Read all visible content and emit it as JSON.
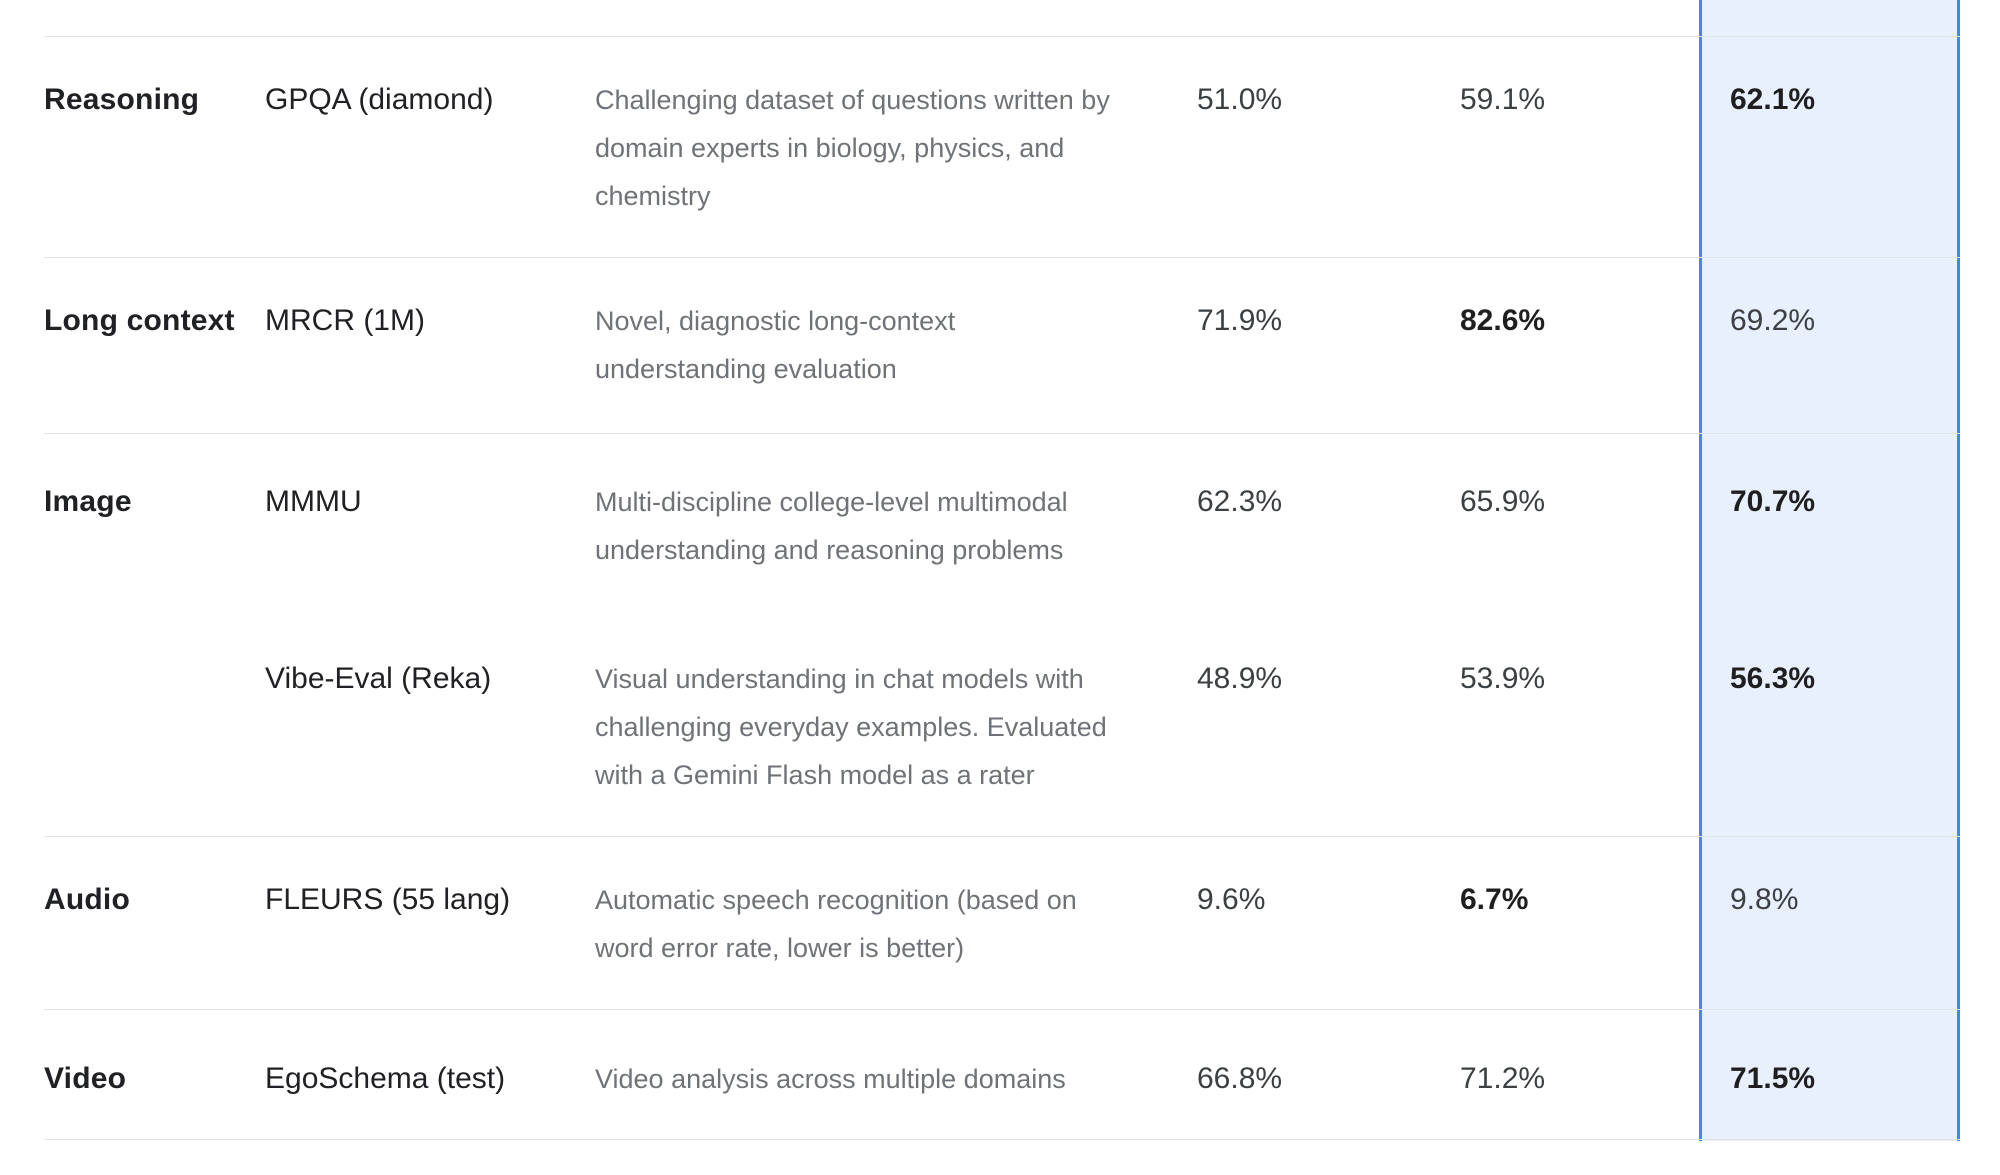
{
  "colors": {
    "highlight_bg": "#e8f0fe",
    "highlight_border": "#4285f4",
    "divider": "#e0e2e4",
    "text_primary": "#202124",
    "text_secondary": "#6f7377"
  },
  "table": {
    "highlighted_score_column_index": 2,
    "rows": [
      {
        "category": "Reasoning",
        "entries": [
          {
            "benchmark": "GPQA (diamond)",
            "description": "Challenging dataset of questions written by\ndomain experts in biology, physics, and\nchemistry",
            "values": [
              {
                "text": "51.0%",
                "bold": false
              },
              {
                "text": "59.1%",
                "bold": false
              },
              {
                "text": "62.1%",
                "bold": true
              }
            ]
          }
        ]
      },
      {
        "category": "Long context",
        "entries": [
          {
            "benchmark": "MRCR (1M)",
            "description": "Novel, diagnostic long-context\nunderstanding evaluation",
            "values": [
              {
                "text": "71.9%",
                "bold": false
              },
              {
                "text": "82.6%",
                "bold": true
              },
              {
                "text": "69.2%",
                "bold": false
              }
            ]
          }
        ]
      },
      {
        "category": "Image",
        "entries": [
          {
            "benchmark": "MMMU",
            "description": "Multi-discipline college-level multimodal\nunderstanding and reasoning problems",
            "values": [
              {
                "text": "62.3%",
                "bold": false
              },
              {
                "text": "65.9%",
                "bold": false
              },
              {
                "text": "70.7%",
                "bold": true
              }
            ]
          },
          {
            "benchmark": "Vibe-Eval (Reka)",
            "description": "Visual understanding in chat models with\nchallenging everyday examples. Evaluated\nwith a Gemini Flash model as a rater",
            "values": [
              {
                "text": "48.9%",
                "bold": false
              },
              {
                "text": "53.9%",
                "bold": false
              },
              {
                "text": "56.3%",
                "bold": true
              }
            ]
          }
        ]
      },
      {
        "category": "Audio",
        "entries": [
          {
            "benchmark": "FLEURS (55 lang)",
            "description": "Automatic speech recognition (based on\nword error rate, lower is better)",
            "values": [
              {
                "text": "9.6%",
                "bold": false
              },
              {
                "text": "6.7%",
                "bold": true
              },
              {
                "text": "9.8%",
                "bold": false
              }
            ]
          }
        ]
      },
      {
        "category": "Video",
        "entries": [
          {
            "benchmark": "EgoSchema (test)",
            "description": "Video analysis across multiple domains",
            "values": [
              {
                "text": "66.8%",
                "bold": false
              },
              {
                "text": "71.2%",
                "bold": false
              },
              {
                "text": "71.5%",
                "bold": true
              }
            ]
          }
        ]
      }
    ]
  }
}
